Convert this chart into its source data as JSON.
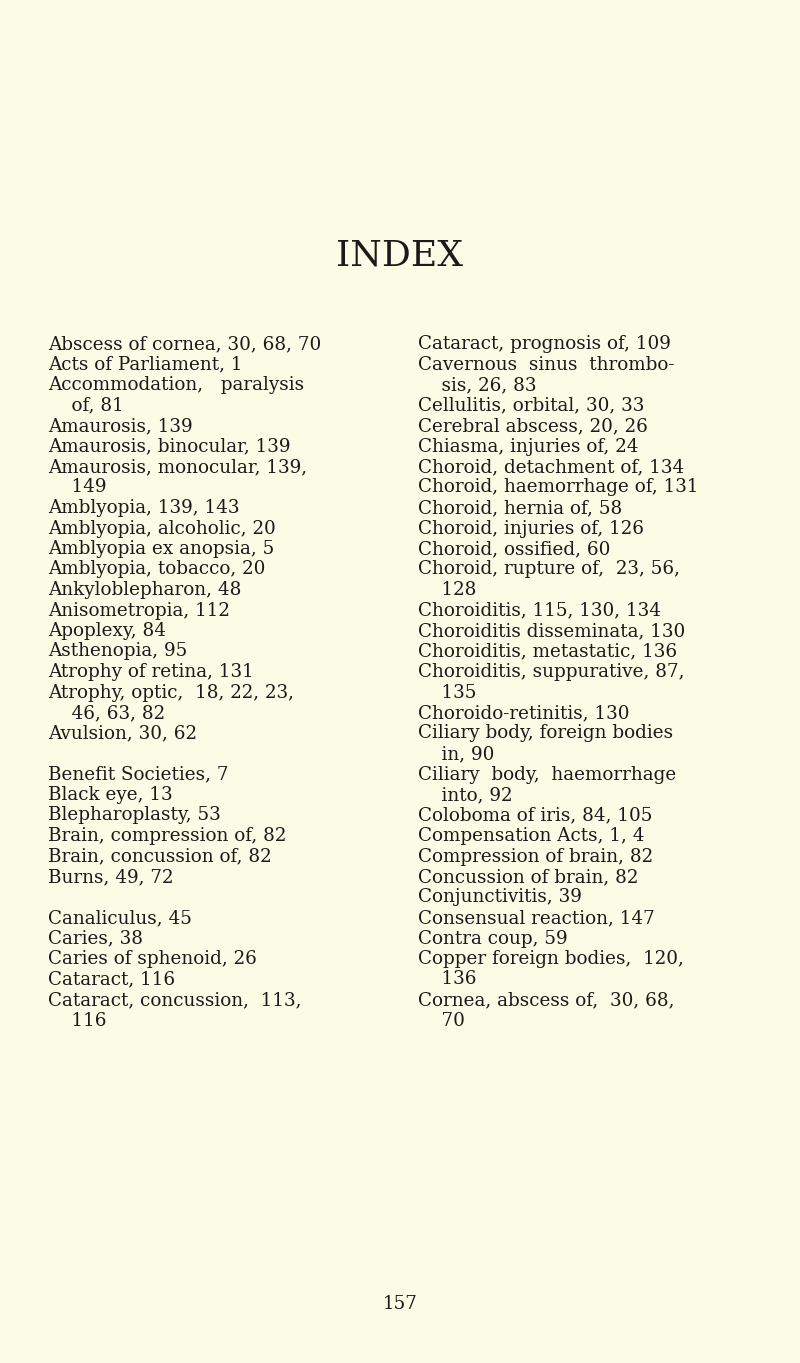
{
  "title": "INDEX",
  "background_color": "#fbfbe6",
  "text_color": "#1a1a1a",
  "title_fontsize": 26,
  "body_fontsize": 13.2,
  "page_number": "157",
  "left_column": [
    "Abscess of cornea, 30, 68, 70",
    "Acts of Parliament, 1",
    "Accommodation,   paralysis",
    "    of, 81",
    "Amaurosis, 139",
    "Amaurosis, binocular, 139",
    "Amaurosis, monocular, 139,",
    "    149",
    "Amblyopia, 139, 143",
    "Amblyopia, alcoholic, 20",
    "Amblyopia ex anopsia, 5",
    "Amblyopia, tobacco, 20",
    "Ankyloblepharon, 48",
    "Anisometropia, 112",
    "Apoplexy, 84",
    "Asthenopia, 95",
    "Atrophy of retina, 131",
    "Atrophy, optic,  18, 22, 23,",
    "    46, 63, 82",
    "Avulsion, 30, 62",
    "",
    "Benefit Societies, 7",
    "Black eye, 13",
    "Blepharoplasty, 53",
    "Brain, compression of, 82",
    "Brain, concussion of, 82",
    "Burns, 49, 72",
    "",
    "Canaliculus, 45",
    "Caries, 38",
    "Caries of sphenoid, 26",
    "Cataract, 116",
    "Cataract, concussion,  113,",
    "    116"
  ],
  "right_column": [
    "Cataract, prognosis of, 109",
    "Cavernous  sinus  thrombo-",
    "    sis, 26, 83",
    "Cellulitis, orbital, 30, 33",
    "Cerebral abscess, 20, 26",
    "Chiasma, injuries of, 24",
    "Choroid, detachment of, 134",
    "Choroid, haemorrhage of, 131",
    "Choroid, hernia of, 58",
    "Choroid, injuries of, 126",
    "Choroid, ossified, 60",
    "Choroid, rupture of,  23, 56,",
    "    128",
    "Choroiditis, 115, 130, 134",
    "Choroiditis disseminata, 130",
    "Choroiditis, metastatic, 136",
    "Choroiditis, suppurative, 87,",
    "    135",
    "Choroido-retinitis, 130",
    "Ciliary body, foreign bodies",
    "    in, 90",
    "Ciliary  body,  haemorrhage",
    "    into, 92",
    "Coloboma of iris, 84, 105",
    "Compensation Acts, 1, 4",
    "Compression of brain, 82",
    "Concussion of brain, 82",
    "Conjunctivitis, 39",
    "Consensual reaction, 147",
    "Contra coup, 59",
    "Copper foreign bodies,  120,",
    "    136",
    "Cornea, abscess of,  30, 68,",
    "    70"
  ],
  "fig_width": 8.0,
  "fig_height": 13.63,
  "dpi": 100
}
